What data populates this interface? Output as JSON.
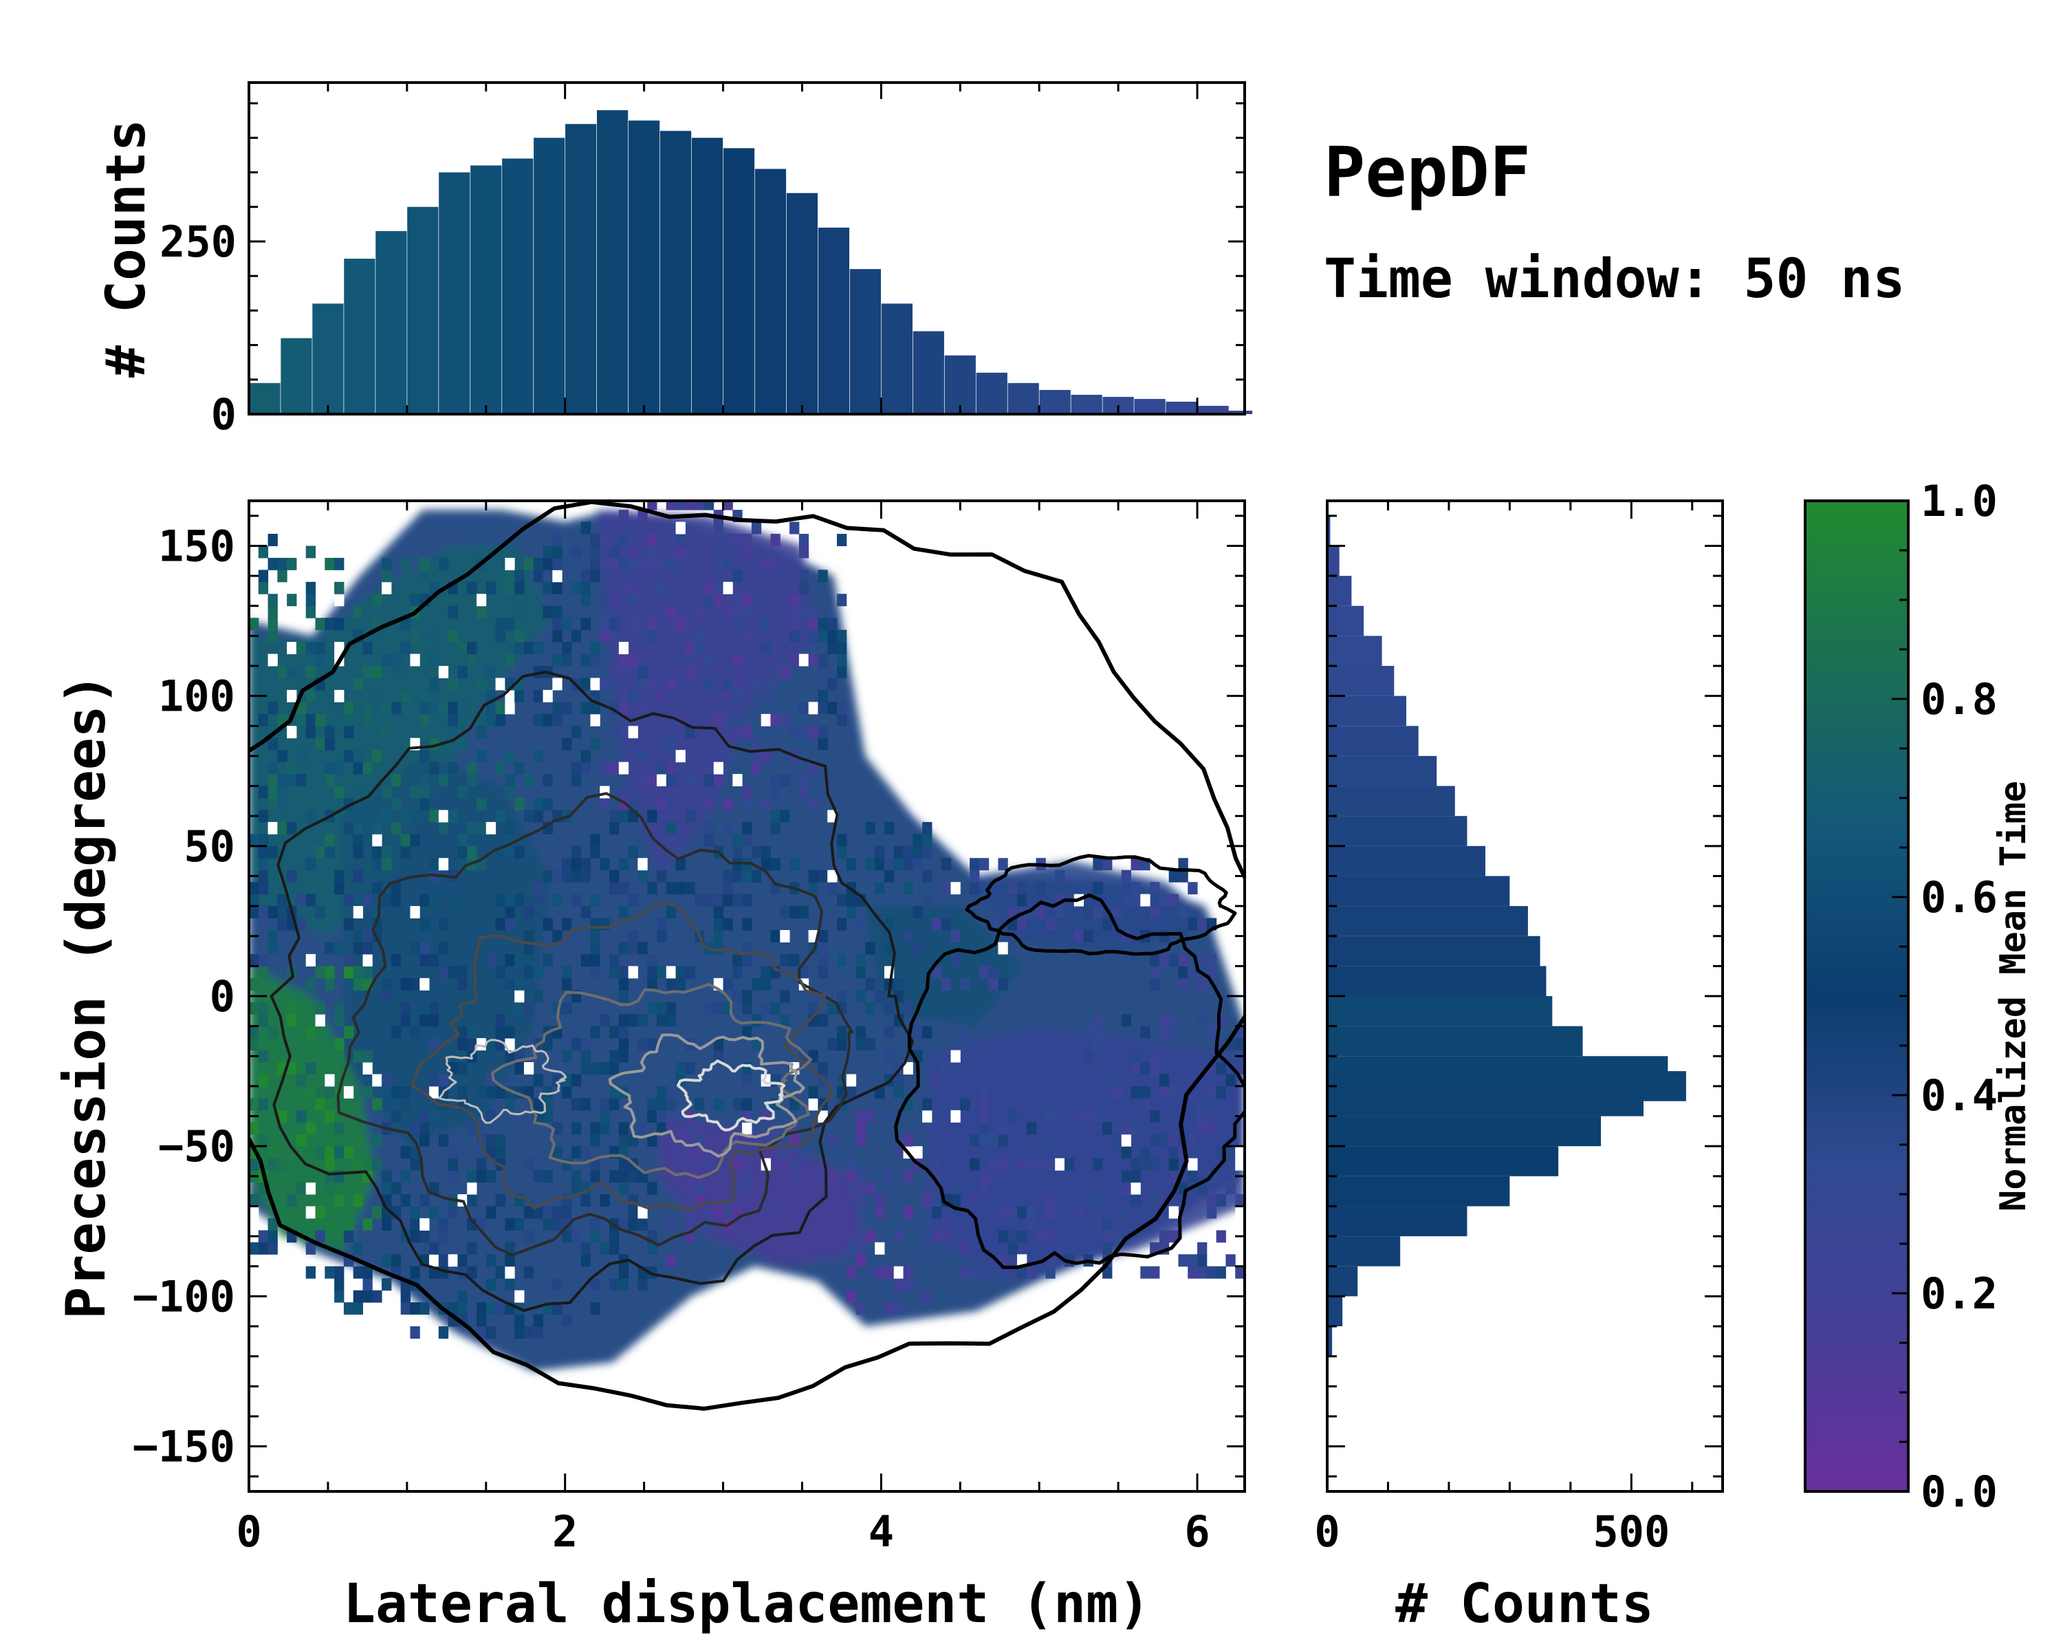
{
  "chart_data": [
    {
      "type": "heatmap",
      "panel": "main",
      "xlabel": "Lateral displacement (nm)",
      "ylabel": "Precession (degrees)",
      "xlim": [
        0,
        6.3
      ],
      "ylim": [
        -165,
        165
      ],
      "xticks": [
        0,
        2,
        4,
        6
      ],
      "yticks": [
        -150,
        -100,
        -50,
        0,
        50,
        100,
        150
      ],
      "colorbar": {
        "label": "Normalized Mean Time",
        "range": [
          0.0,
          1.0
        ],
        "ticks": [
          0.0,
          0.2,
          0.4,
          0.6,
          0.8,
          1.0
        ],
        "colors": [
          "#6a2f9c",
          "#433f96",
          "#2f4a91",
          "#0b3d6e",
          "#13577a",
          "#1a6f55",
          "#218a30"
        ]
      },
      "overlay": "density contours",
      "description_regions": [
        {
          "region": "left edge, -40 to 0 deg",
          "approx_value": 0.85
        },
        {
          "region": "upper-right lobe, x 4.5-6.2",
          "approx_value": 0.35
        },
        {
          "region": "density peak near x=3.0, -35 deg",
          "approx_value": 0.45
        }
      ]
    },
    {
      "type": "bar",
      "panel": "top marginal",
      "ylabel": "# Counts",
      "xlim": [
        0,
        6.3
      ],
      "ylim": [
        0,
        480
      ],
      "yticks": [
        0,
        250
      ],
      "bin_centers_nm": [
        0.1,
        0.3,
        0.5,
        0.7,
        0.9,
        1.1,
        1.3,
        1.5,
        1.7,
        1.9,
        2.1,
        2.3,
        2.5,
        2.7,
        2.9,
        3.1,
        3.3,
        3.5,
        3.7,
        3.9,
        4.1,
        4.3,
        4.5,
        4.7,
        4.9,
        5.1,
        5.3,
        5.5,
        5.7,
        5.9,
        6.1,
        6.25
      ],
      "values": [
        45,
        110,
        160,
        225,
        265,
        300,
        350,
        360,
        370,
        400,
        420,
        440,
        425,
        410,
        400,
        385,
        355,
        320,
        270,
        210,
        160,
        120,
        85,
        60,
        45,
        35,
        28,
        25,
        22,
        18,
        12,
        5
      ]
    },
    {
      "type": "bar",
      "panel": "right marginal",
      "orientation": "horizontal",
      "xlabel": "# Counts",
      "xlim": [
        0,
        650
      ],
      "xticks": [
        0,
        500
      ],
      "ylim": [
        -165,
        165
      ],
      "bin_centers_deg": [
        155,
        145,
        135,
        125,
        115,
        105,
        95,
        85,
        75,
        65,
        55,
        45,
        35,
        25,
        15,
        5,
        -5,
        -15,
        -25,
        -30,
        -35,
        -45,
        -55,
        -65,
        -75,
        -85,
        -95,
        -105,
        -115
      ],
      "values": [
        5,
        20,
        40,
        60,
        90,
        110,
        130,
        150,
        180,
        210,
        230,
        260,
        300,
        330,
        350,
        360,
        370,
        420,
        560,
        590,
        520,
        450,
        380,
        300,
        230,
        120,
        50,
        25,
        8
      ]
    }
  ],
  "annotations": {
    "title": "PepDF",
    "subtitle": "Time window: 50 ns"
  }
}
